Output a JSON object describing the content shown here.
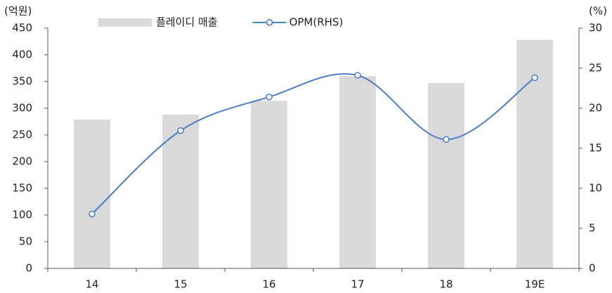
{
  "chart_data": {
    "type": "bar",
    "y_label": "(억원)",
    "y2_label": "(%)",
    "categories": [
      "14",
      "15",
      "16",
      "17",
      "18",
      "19E"
    ],
    "series": [
      {
        "name": "플레이디 매출",
        "type": "bar",
        "color": "#d9d9d9",
        "axis": "y",
        "values": [
          279,
          288,
          314,
          360,
          347,
          428
        ]
      },
      {
        "name": "OPM(RHS)",
        "type": "line",
        "color": "#4a7ec8",
        "axis": "y2",
        "smooth": true,
        "values": [
          6.8,
          17.2,
          21.4,
          24.1,
          16.1,
          23.8
        ]
      }
    ],
    "ylim": [
      0,
      450
    ],
    "yticks": [
      0,
      50,
      100,
      150,
      200,
      250,
      300,
      350,
      400,
      450
    ],
    "y2lim": [
      0,
      30
    ],
    "y2ticks": [
      0,
      5,
      10,
      15,
      20,
      25,
      30
    ],
    "grid": false,
    "legend": "top"
  }
}
